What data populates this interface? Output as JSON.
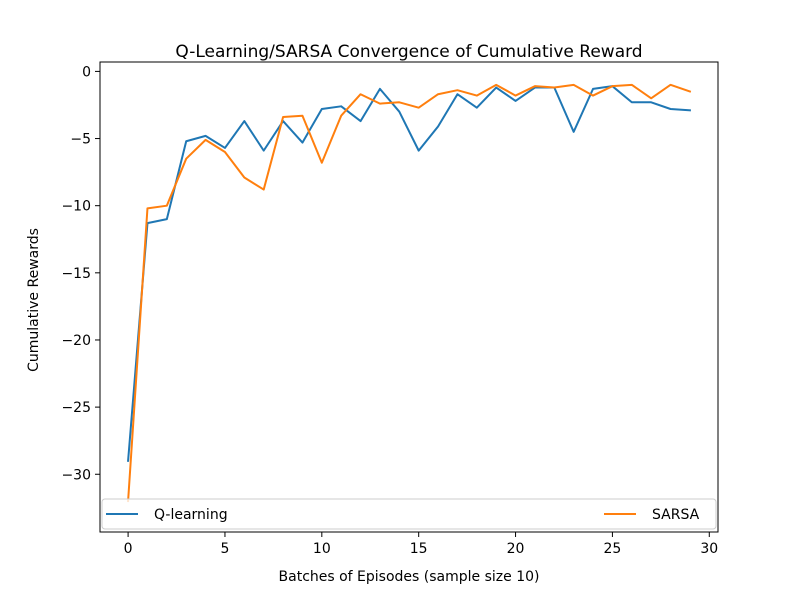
{
  "chart_data": {
    "type": "line",
    "title": "Q-Learning/SARSA Convergence of Cumulative Reward",
    "xlabel": "Batches of Episodes (sample size 10)",
    "ylabel": "Cumulative Rewards",
    "xlim": [
      -1.45,
      30.45
    ],
    "ylim": [
      -34.3,
      0.7
    ],
    "xticks": [
      0,
      5,
      10,
      15,
      20,
      25,
      30
    ],
    "yticks": [
      0,
      -5,
      -10,
      -15,
      -20,
      -25,
      -30
    ],
    "xtick_labels": [
      "0",
      "5",
      "10",
      "15",
      "20",
      "25",
      "30"
    ],
    "ytick_labels": [
      "0",
      "−5",
      "−10",
      "−15",
      "−20",
      "−25",
      "−30"
    ],
    "grid": false,
    "legend_placement": "lower full-width",
    "x": [
      0,
      1,
      2,
      3,
      4,
      5,
      6,
      7,
      8,
      9,
      10,
      11,
      12,
      13,
      14,
      15,
      16,
      17,
      18,
      19,
      20,
      21,
      22,
      23,
      24,
      25,
      26,
      27,
      28,
      29
    ],
    "series": [
      {
        "name": "Q-learning",
        "color": "#1f77b4",
        "values": [
          -29.0,
          -11.3,
          -11.0,
          -5.2,
          -4.8,
          -5.7,
          -3.7,
          -5.9,
          -3.7,
          -5.3,
          -2.8,
          -2.6,
          -3.7,
          -1.3,
          -3.0,
          -5.9,
          -4.1,
          -1.7,
          -2.7,
          -1.2,
          -2.2,
          -1.2,
          -1.2,
          -4.5,
          -1.3,
          -1.1,
          -2.3,
          -2.3,
          -2.8,
          -2.9
        ]
      },
      {
        "name": "SARSA",
        "color": "#ff7f0e",
        "values": [
          -32.0,
          -10.2,
          -10.0,
          -6.5,
          -5.1,
          -6.0,
          -7.9,
          -8.8,
          -3.4,
          -3.3,
          -6.8,
          -3.3,
          -1.7,
          -2.4,
          -2.3,
          -2.7,
          -1.7,
          -1.4,
          -1.8,
          -1.0,
          -1.8,
          -1.1,
          -1.2,
          -1.0,
          -1.8,
          -1.1,
          -1.0,
          -2.0,
          -1.0,
          -1.5
        ]
      }
    ]
  }
}
